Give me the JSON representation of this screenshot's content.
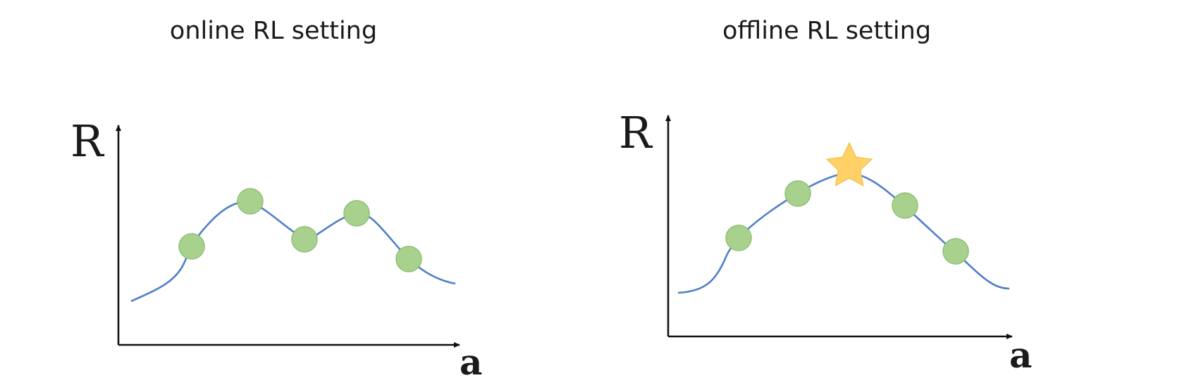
{
  "panels": [
    {
      "title": "online RL setting",
      "y_axis_label": "R",
      "x_axis_label": "a",
      "markers": [
        "circle",
        "circle",
        "circle",
        "circle",
        "circle"
      ]
    },
    {
      "title": "offline RL setting",
      "y_axis_label": "R",
      "x_axis_label": "a",
      "markers": [
        "circle",
        "circle",
        "star",
        "circle",
        "circle"
      ]
    }
  ],
  "colors": {
    "curve": "#4f7ec7",
    "point_fill": "#a9d18e",
    "star_fill": "#ffd166",
    "axis": "#111111"
  }
}
